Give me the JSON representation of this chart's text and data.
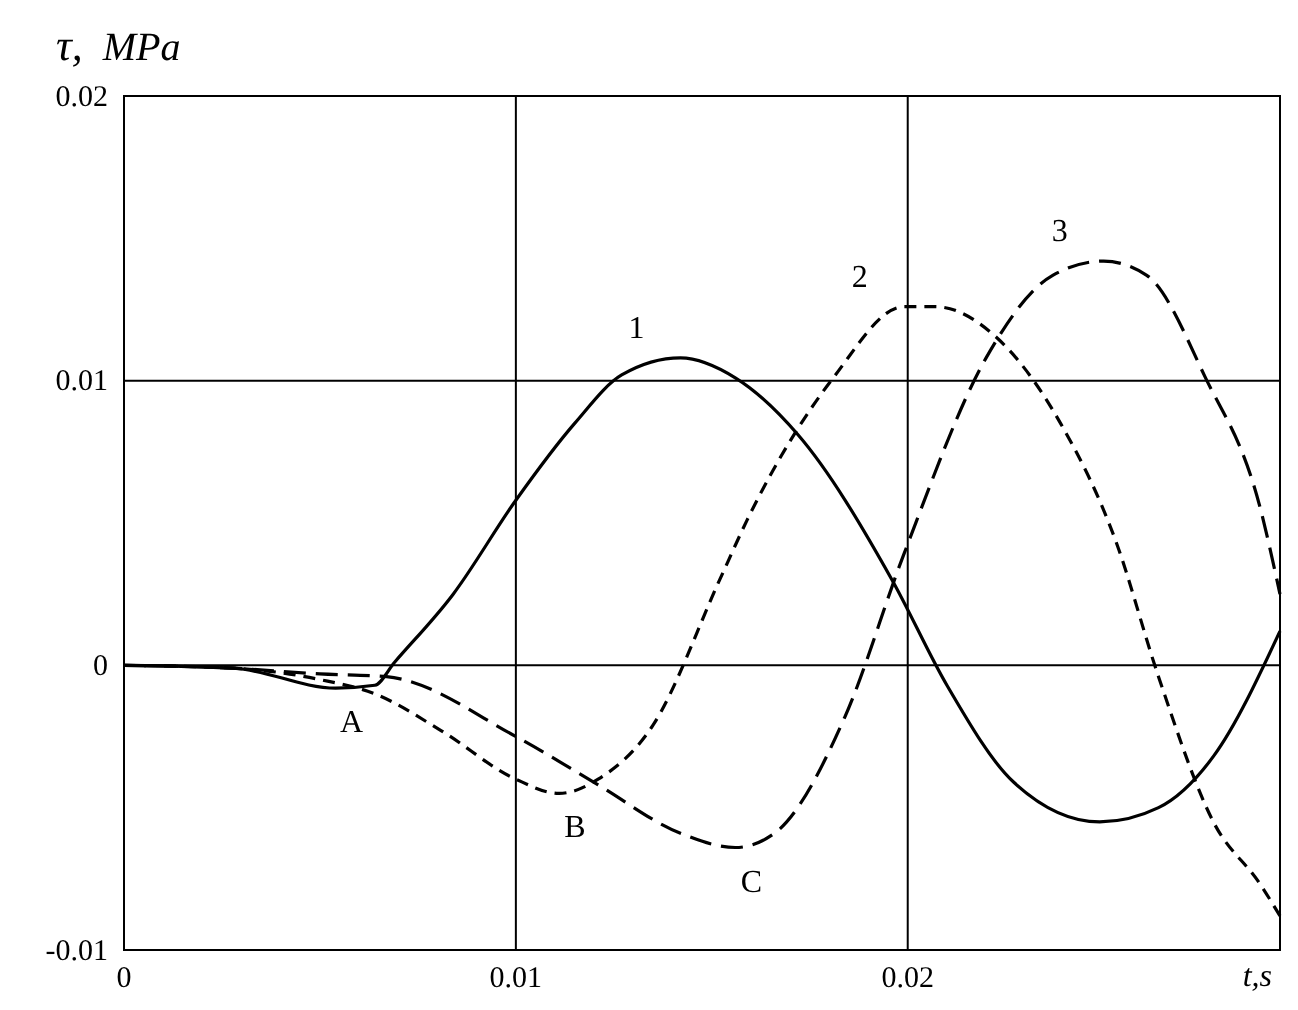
{
  "chart_data": {
    "type": "line",
    "ylabel": "τ,  MPa",
    "xlabel": "t,s",
    "xlim": [
      0,
      0.0295
    ],
    "ylim": [
      -0.01,
      0.02
    ],
    "xticks": [
      0,
      0.01,
      0.02
    ],
    "yticks": [
      -0.01,
      0,
      0.01,
      0.02
    ],
    "grid": true,
    "marker": "none",
    "series": [
      {
        "name": "1",
        "color": "#000000",
        "line_style": "solid",
        "x": [
          0,
          0.0028,
          0.0054,
          0.0064,
          0.0069,
          0.0084,
          0.01,
          0.0115,
          0.0127,
          0.0142,
          0.0156,
          0.0172,
          0.0196,
          0.021,
          0.0227,
          0.0249,
          0.0264,
          0.0278,
          0.0295
        ],
        "values": [
          0,
          -0.0001,
          -0.0008,
          -0.0007,
          0.0001,
          0.0025,
          0.0058,
          0.0085,
          0.0102,
          0.0108,
          0.0101,
          0.0081,
          0.003,
          -0.0007,
          -0.0041,
          -0.0055,
          -0.005,
          -0.0032,
          0.0012
        ]
      },
      {
        "name": "2",
        "color": "#000000",
        "line_style": "dotted",
        "x": [
          0,
          0.0028,
          0.005,
          0.0064,
          0.0081,
          0.01,
          0.0111,
          0.0121,
          0.0135,
          0.0152,
          0.0159,
          0.0181,
          0.0199,
          0.0207,
          0.0222,
          0.0239,
          0.0253,
          0.0264,
          0.0278,
          0.029,
          0.0295
        ],
        "values": [
          0,
          -0.0001,
          -0.0005,
          -0.001,
          -0.0023,
          -0.004,
          -0.0045,
          -0.004,
          -0.0021,
          0.003,
          0.0051,
          0.0101,
          0.0126,
          0.0126,
          0.0116,
          0.0085,
          0.0044,
          -0.0004,
          -0.0055,
          -0.0077,
          -0.0088
        ]
      },
      {
        "name": "3",
        "color": "#000000",
        "line_style": "dashed",
        "x": [
          0,
          0.0028,
          0.005,
          0.0067,
          0.01,
          0.0121,
          0.0142,
          0.0156,
          0.0166,
          0.0184,
          0.0199,
          0.022,
          0.0237,
          0.025,
          0.0261,
          0.0276,
          0.029,
          0.0295
        ],
        "values": [
          0,
          -0.0001,
          -0.0003,
          -0.0004,
          -0.0025,
          -0.0042,
          -0.0059,
          -0.0064,
          -0.0059,
          -0.0018,
          0.0039,
          0.0108,
          0.0137,
          0.0142,
          0.0137,
          0.0101,
          0.0055,
          0.0025
        ]
      }
    ],
    "annotations": [
      {
        "text": "A",
        "x": 0.0054,
        "y": -0.0008
      },
      {
        "text": "B",
        "x": 0.0111,
        "y": -0.0045
      },
      {
        "text": "C",
        "x": 0.0156,
        "y": -0.0064
      }
    ]
  }
}
